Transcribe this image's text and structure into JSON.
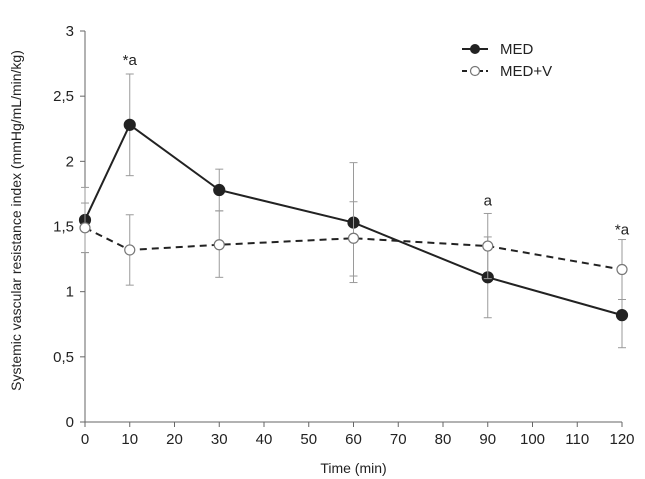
{
  "chart_data": {
    "type": "line",
    "title": "",
    "xlabel": "Time (min)",
    "ylabel": "Systemic vascular resistance index (mmHg/mL/min/kg)",
    "xlim": [
      0,
      120
    ],
    "ylim": [
      0,
      3
    ],
    "x_ticks": [
      0,
      10,
      20,
      30,
      40,
      50,
      60,
      70,
      80,
      90,
      100,
      110,
      120
    ],
    "y_ticks": [
      0,
      0.5,
      1,
      1.5,
      2,
      2.5,
      3
    ],
    "y_tick_labels": [
      "0",
      "0,5",
      "1",
      "1,5",
      "2",
      "2,5",
      "3"
    ],
    "grid": false,
    "legend_position": "top-right",
    "series": [
      {
        "name": "MED",
        "style": "solid",
        "marker": "filled-circle",
        "color": "#222222",
        "x": [
          0,
          10,
          30,
          60,
          90,
          120
        ],
        "y": [
          1.55,
          2.28,
          1.78,
          1.53,
          1.11,
          0.82
        ],
        "err_low": [
          1.3,
          1.89,
          1.62,
          1.07,
          0.8,
          0.57
        ],
        "err_high": [
          1.8,
          2.67,
          1.94,
          1.99,
          1.42,
          0.94
        ]
      },
      {
        "name": "MED+V",
        "style": "dashed",
        "marker": "open-circle",
        "color": "#222222",
        "x": [
          0,
          10,
          30,
          60,
          90,
          120
        ],
        "y": [
          1.49,
          1.32,
          1.36,
          1.41,
          1.35,
          1.17
        ],
        "err_low": [
          1.3,
          1.05,
          1.11,
          1.12,
          1.1,
          0.94
        ],
        "err_high": [
          1.68,
          1.59,
          1.62,
          1.69,
          1.6,
          1.4
        ]
      }
    ],
    "annotations": [
      {
        "text": "*a",
        "x": 10,
        "y": 2.74
      },
      {
        "text": "a",
        "x": 90,
        "y": 1.66
      },
      {
        "text": "*a",
        "x": 120,
        "y": 1.44
      }
    ]
  }
}
